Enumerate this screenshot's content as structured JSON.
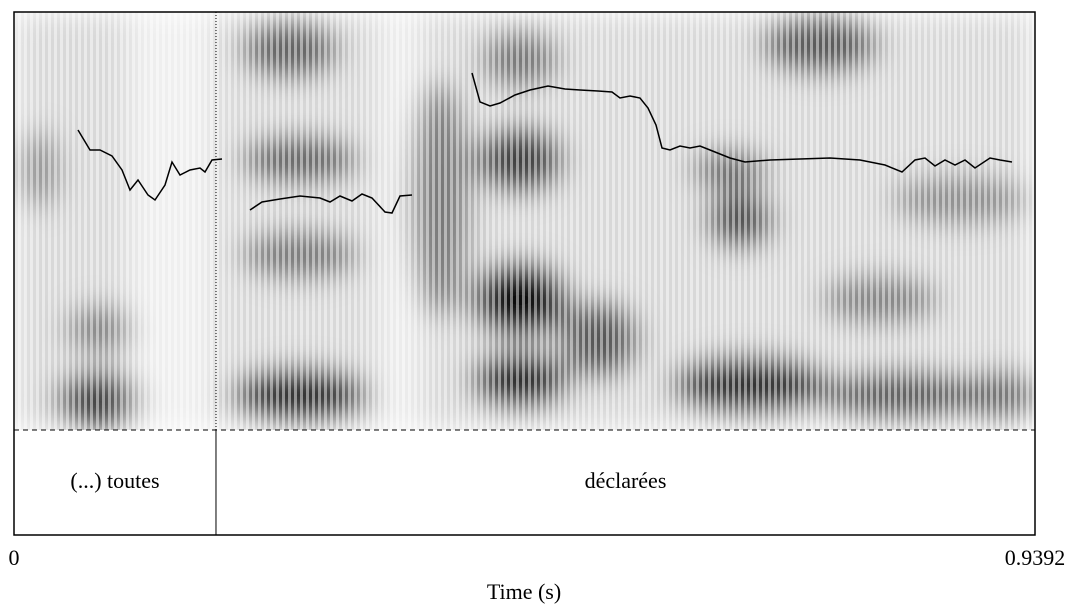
{
  "chart_data": {
    "type": "spectrogram",
    "xlabel": "Time (s)",
    "xlim": [
      0,
      0.9392
    ],
    "xticks": [
      0,
      0.9392
    ],
    "intervals": [
      {
        "label": "(...) toutes",
        "start": 0,
        "end": 0.1858
      },
      {
        "label": "déclarées",
        "start": 0.1858,
        "end": 0.9392
      }
    ]
  }
}
